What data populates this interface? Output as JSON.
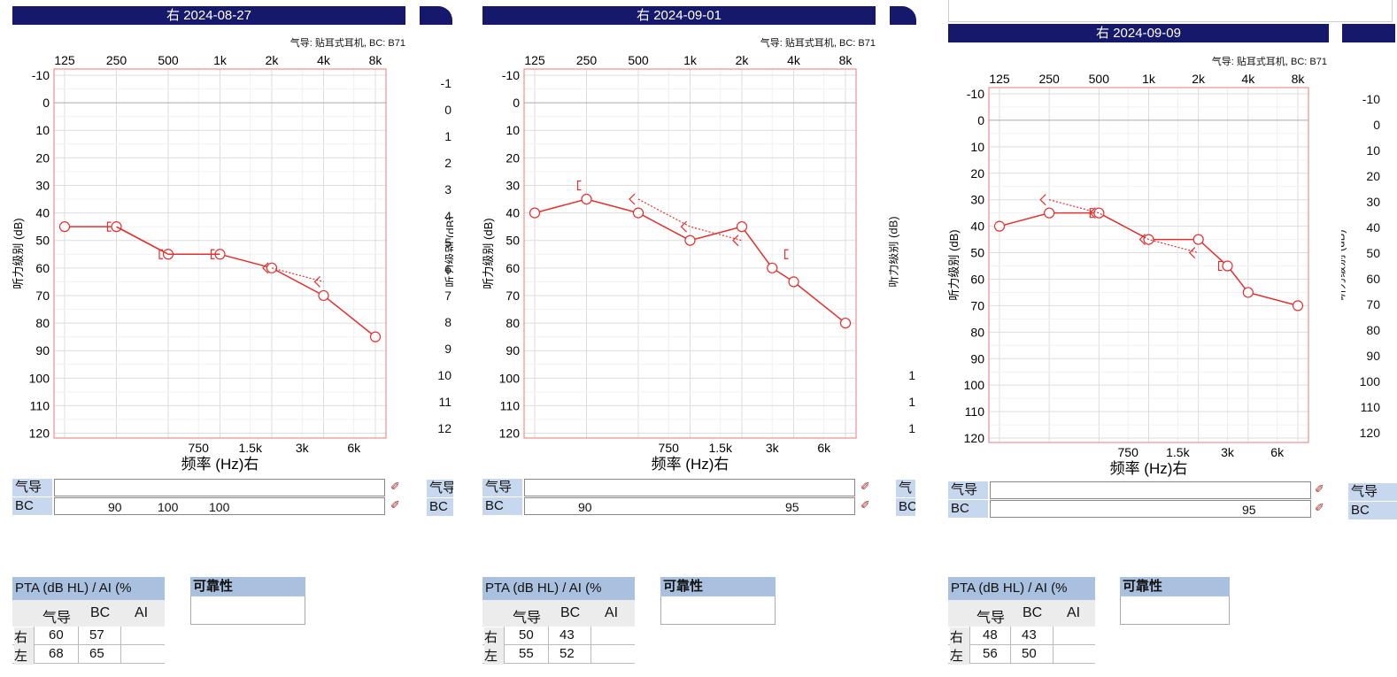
{
  "spec_text": "气导: 贴耳式耳机, BC: B71",
  "y_axis_label": "听力级别 (dB)",
  "x_axis_label": "频率 (Hz)右",
  "freq_top_labels": [
    "125",
    "250",
    "500",
    "1k",
    "2k",
    "4k",
    "8k"
  ],
  "freq_bottom_labels": [
    "750",
    "1.5k",
    "3k",
    "6k"
  ],
  "db_labels": [
    "-10",
    "0",
    "10",
    "20",
    "30",
    "40",
    "50",
    "60",
    "70",
    "80",
    "90",
    "100",
    "110",
    "120"
  ],
  "mask_labels": {
    "ac": "气导",
    "bc": "BC"
  },
  "pta_header": "PTA (dB HL) / AI (%",
  "pta_cols": [
    "气导",
    "BC",
    "AI"
  ],
  "reliability_label": "可靠性",
  "colors": {
    "header_bg": "#16186b",
    "right_ear": "#e03030",
    "grid": "#dddddd",
    "frame": "#f09090"
  },
  "chart_data": [
    {
      "type": "line",
      "title": "右 2024-08-27",
      "x_scale": "log2",
      "ylim": [
        -10,
        120
      ],
      "series": [
        {
          "marker": "circle",
          "line": "solid",
          "x": [
            125,
            250,
            500,
            1000,
            2000,
            4000,
            8000
          ],
          "y": [
            45,
            45,
            55,
            55,
            60,
            70,
            85
          ]
        },
        {
          "marker": "bracket",
          "line": "solid",
          "x": [
            250,
            500,
            1000
          ],
          "y": [
            45,
            55,
            55
          ]
        },
        {
          "marker": "angle",
          "line": "dotted",
          "x": [
            2000,
            4000
          ],
          "y": [
            60,
            65
          ]
        }
      ],
      "masking": {
        "ac": [],
        "bc": [
          "90",
          "100",
          "100"
        ]
      },
      "pta": {
        "right": [
          "60",
          "57",
          ""
        ],
        "left": [
          "68",
          "65",
          ""
        ]
      }
    },
    {
      "type": "line",
      "title": "右 2024-09-01",
      "x_scale": "log2",
      "ylim": [
        -10,
        120
      ],
      "series": [
        {
          "marker": "circle",
          "line": "solid",
          "x": [
            125,
            250,
            500,
            1000,
            2000,
            3000,
            4000,
            8000
          ],
          "y": [
            40,
            35,
            40,
            50,
            45,
            60,
            65,
            80
          ]
        },
        {
          "marker": "bracket",
          "line": "dotted",
          "x": [
            250
          ],
          "y": [
            30
          ]
        },
        {
          "marker": "angle",
          "line": "dotted",
          "x": [
            500,
            1000,
            2000
          ],
          "y": [
            35,
            45,
            50
          ]
        },
        {
          "marker": "bracket",
          "line": "dotted",
          "x": [
            4000
          ],
          "y": [
            55
          ]
        }
      ],
      "masking": {
        "ac": [],
        "bc": [
          "90",
          "95"
        ]
      },
      "pta": {
        "right": [
          "50",
          "43",
          ""
        ],
        "left": [
          "55",
          "52",
          ""
        ]
      }
    },
    {
      "type": "line",
      "title": "右 2024-09-09",
      "x_scale": "log2",
      "ylim": [
        -10,
        120
      ],
      "series": [
        {
          "marker": "circle",
          "line": "solid",
          "x": [
            125,
            250,
            500,
            1000,
            2000,
            3000,
            4000,
            8000
          ],
          "y": [
            40,
            35,
            35,
            45,
            45,
            55,
            65,
            70
          ]
        },
        {
          "marker": "bracket",
          "line": "solid",
          "x": [
            500
          ],
          "y": [
            35
          ]
        },
        {
          "marker": "angle",
          "line": "dotted",
          "x": [
            250,
            500,
            1000,
            2000
          ],
          "y": [
            30,
            35,
            45,
            50
          ]
        },
        {
          "marker": "bracket",
          "line": "dotted",
          "x": [
            3000
          ],
          "y": [
            55
          ]
        }
      ],
      "masking": {
        "ac": [],
        "bc": [
          "95"
        ]
      },
      "pta": {
        "right": [
          "48",
          "43",
          ""
        ],
        "left": [
          "56",
          "50",
          ""
        ]
      }
    }
  ],
  "partial_panels": [
    {
      "db_labels": [
        "-1",
        "0",
        "1",
        "2",
        "3",
        "4",
        "5",
        "6",
        "7",
        "8",
        "9",
        "10",
        "11",
        "12"
      ],
      "mask": [
        "气导",
        "BC"
      ]
    },
    {
      "db_labels": [
        "",
        "",
        "",
        "",
        "",
        "",
        "",
        "",
        "",
        "",
        "",
        "1",
        "1",
        "1"
      ],
      "mask": [
        "气",
        "BC"
      ]
    },
    {
      "db_labels": [
        "-10",
        "0",
        "10",
        "20",
        "30",
        "40",
        "50",
        "60",
        "70",
        "80",
        "90",
        "100",
        "110",
        "120"
      ],
      "mask": [
        "气导",
        "BC"
      ]
    }
  ]
}
